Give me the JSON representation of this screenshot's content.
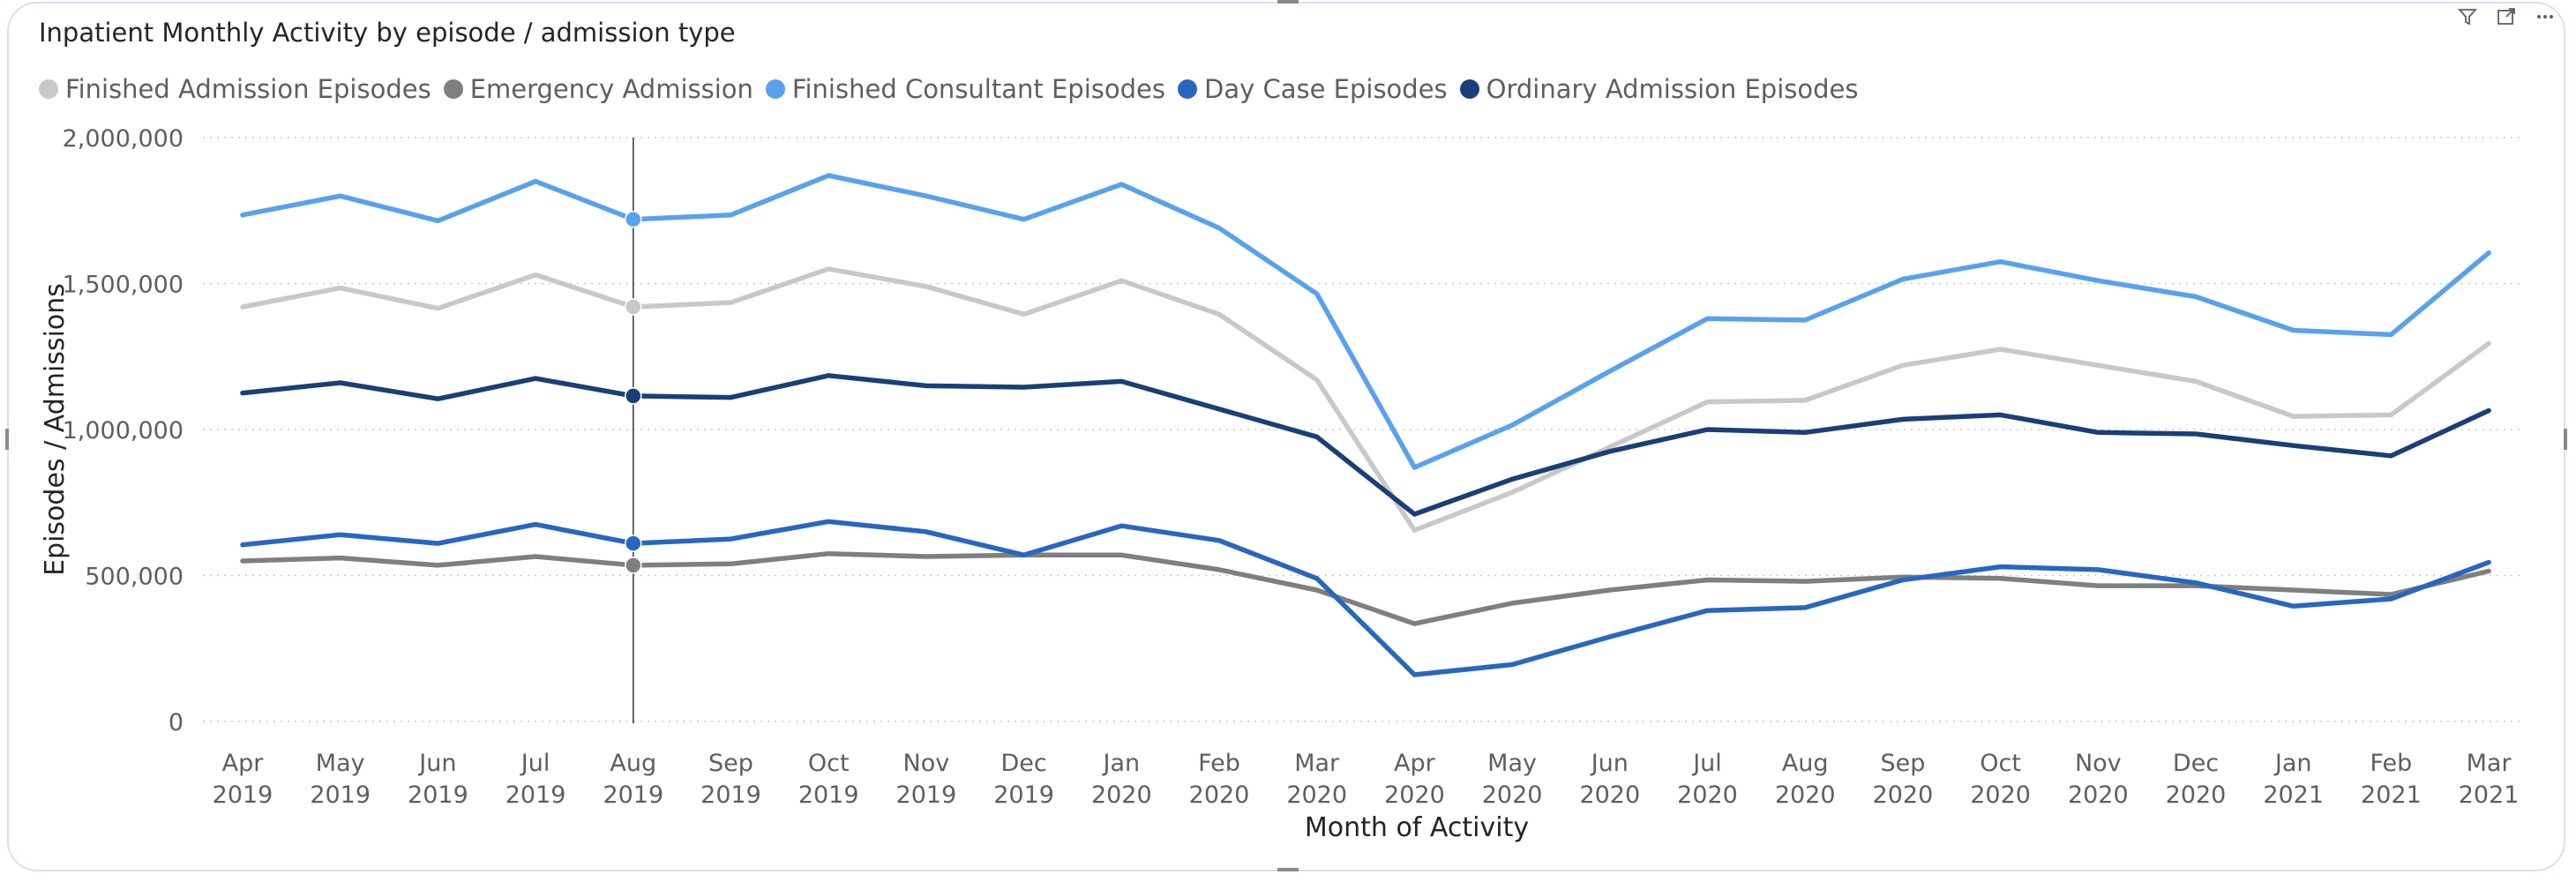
{
  "header": {
    "title": "Inpatient Monthly Activity by episode / admission type",
    "icons": [
      "filter-icon",
      "focus-mode-icon",
      "more-options-icon"
    ]
  },
  "chart_data": {
    "type": "line",
    "title": "Inpatient Monthly Activity by episode / admission type",
    "xlabel": "Month of Activity",
    "ylabel": "Episodes / Admissions",
    "ylim": [
      0,
      2000000
    ],
    "yticks": [
      "0",
      "500,000",
      "1,000,000",
      "1,500,000",
      "2,000,000"
    ],
    "grid": "horizontal dotted",
    "legend_position": "top-left",
    "categories": [
      [
        "Apr",
        "2019"
      ],
      [
        "May",
        "2019"
      ],
      [
        "Jun",
        "2019"
      ],
      [
        "Jul",
        "2019"
      ],
      [
        "Aug",
        "2019"
      ],
      [
        "Sep",
        "2019"
      ],
      [
        "Oct",
        "2019"
      ],
      [
        "Nov",
        "2019"
      ],
      [
        "Dec",
        "2019"
      ],
      [
        "Jan",
        "2020"
      ],
      [
        "Feb",
        "2020"
      ],
      [
        "Mar",
        "2020"
      ],
      [
        "Apr",
        "2020"
      ],
      [
        "May",
        "2020"
      ],
      [
        "Jun",
        "2020"
      ],
      [
        "Jul",
        "2020"
      ],
      [
        "Aug",
        "2020"
      ],
      [
        "Sep",
        "2020"
      ],
      [
        "Oct",
        "2020"
      ],
      [
        "Nov",
        "2020"
      ],
      [
        "Dec",
        "2020"
      ],
      [
        "Jan",
        "2021"
      ],
      [
        "Feb",
        "2021"
      ],
      [
        "Mar",
        "2021"
      ]
    ],
    "highlighted_index": 4,
    "series": [
      {
        "name": "Finished Admission Episodes",
        "color": "#c8c8c8",
        "values": [
          1420000,
          1485000,
          1415000,
          1530000,
          1420000,
          1435000,
          1550000,
          1490000,
          1395000,
          1510000,
          1395000,
          1170000,
          655000,
          785000,
          940000,
          1095000,
          1100000,
          1220000,
          1275000,
          1220000,
          1165000,
          1045000,
          1050000,
          1295000
        ]
      },
      {
        "name": "Emergency Admission",
        "color": "#7f7f7f",
        "values": [
          550000,
          560000,
          535000,
          565000,
          535000,
          540000,
          575000,
          565000,
          570000,
          570000,
          520000,
          450000,
          335000,
          405000,
          450000,
          485000,
          480000,
          495000,
          490000,
          465000,
          465000,
          450000,
          435000,
          515000
        ]
      },
      {
        "name": "Finished Consultant Episodes",
        "color": "#58a1ef",
        "values": [
          1735000,
          1800000,
          1715000,
          1850000,
          1720000,
          1735000,
          1870000,
          1800000,
          1720000,
          1840000,
          1690000,
          1465000,
          870000,
          1015000,
          1200000,
          1380000,
          1375000,
          1515000,
          1575000,
          1510000,
          1455000,
          1340000,
          1325000,
          1605000
        ]
      },
      {
        "name": "Day Case Episodes",
        "color": "#2866c2",
        "values": [
          605000,
          640000,
          610000,
          675000,
          610000,
          625000,
          685000,
          650000,
          570000,
          670000,
          620000,
          490000,
          160000,
          195000,
          290000,
          380000,
          390000,
          485000,
          530000,
          520000,
          475000,
          395000,
          420000,
          545000
        ]
      },
      {
        "name": "Ordinary Admission Episodes",
        "color": "#1a3f78",
        "values": [
          1125000,
          1160000,
          1105000,
          1175000,
          1115000,
          1110000,
          1185000,
          1150000,
          1145000,
          1165000,
          1070000,
          975000,
          710000,
          830000,
          925000,
          1000000,
          990000,
          1035000,
          1050000,
          990000,
          985000,
          945000,
          910000,
          1065000
        ]
      }
    ]
  }
}
